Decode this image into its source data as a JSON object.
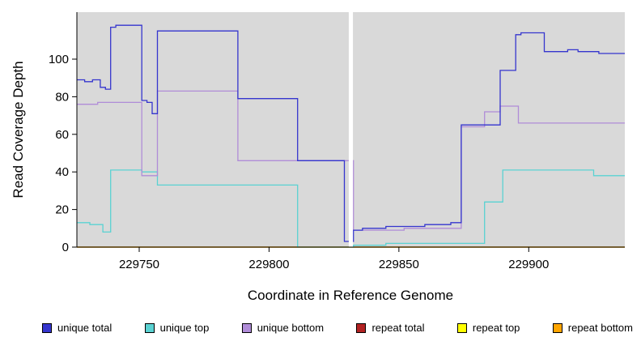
{
  "figure": {
    "background": "#FFFFFF",
    "plot_background": "#D9D9D9",
    "gap_band_color": "#FFFFFF",
    "axis_color": "#000000"
  },
  "chart_data": {
    "type": "line",
    "step": true,
    "title": "",
    "xlabel": "Coordinate in Reference Genome",
    "ylabel": "Read Coverage Depth",
    "xlim": [
      229726,
      229937
    ],
    "ylim": [
      0,
      125
    ],
    "xticks": [
      229750,
      229800,
      229850,
      229900
    ],
    "yticks": [
      0,
      20,
      40,
      60,
      80,
      100
    ],
    "grid": false,
    "legend_position": "bottom",
    "gap_region": [
      229830.7,
      229832.3
    ],
    "draw_order": [
      3,
      4,
      5,
      1,
      2,
      0
    ],
    "series": [
      {
        "name": "unique total",
        "color": "#3535CE",
        "points": [
          [
            229726,
            89
          ],
          [
            229729,
            88
          ],
          [
            229732,
            89
          ],
          [
            229735,
            85
          ],
          [
            229737,
            84
          ],
          [
            229739,
            117
          ],
          [
            229741,
            118
          ],
          [
            229751,
            78
          ],
          [
            229753,
            77
          ],
          [
            229755,
            71
          ],
          [
            229757,
            115
          ],
          [
            229788,
            79
          ],
          [
            229811,
            46
          ],
          [
            229829,
            3
          ],
          [
            229832.5,
            9
          ],
          [
            229836,
            10
          ],
          [
            229845,
            11
          ],
          [
            229860,
            12
          ],
          [
            229870,
            13
          ],
          [
            229874,
            65
          ],
          [
            229889,
            94
          ],
          [
            229895,
            113
          ],
          [
            229897,
            114
          ],
          [
            229906,
            104
          ],
          [
            229915,
            105
          ],
          [
            229919,
            104
          ],
          [
            229927,
            103
          ]
        ]
      },
      {
        "name": "unique top",
        "color": "#5AD2D2",
        "points": [
          [
            229726,
            13
          ],
          [
            229731,
            12
          ],
          [
            229736,
            8
          ],
          [
            229739,
            41
          ],
          [
            229751,
            40
          ],
          [
            229757,
            33
          ],
          [
            229811,
            0
          ],
          [
            229832.5,
            1
          ],
          [
            229845,
            2
          ],
          [
            229883,
            24
          ],
          [
            229890,
            41
          ],
          [
            229925,
            38
          ]
        ]
      },
      {
        "name": "unique bottom",
        "color": "#B08CD8",
        "points": [
          [
            229726,
            76
          ],
          [
            229734,
            77
          ],
          [
            229751,
            38
          ],
          [
            229757,
            83
          ],
          [
            229788,
            46
          ],
          [
            229832.5,
            9
          ],
          [
            229852,
            10
          ],
          [
            229874,
            64
          ],
          [
            229883,
            72
          ],
          [
            229889,
            75
          ],
          [
            229896,
            66
          ]
        ]
      },
      {
        "name": "repeat total",
        "color": "#B22222",
        "points": [
          [
            229726,
            0
          ]
        ]
      },
      {
        "name": "repeat top",
        "color": "#FFFF00",
        "points": [
          [
            229726,
            0
          ]
        ]
      },
      {
        "name": "repeat bottom",
        "color": "#FFA500",
        "points": [
          [
            229726,
            0
          ]
        ]
      }
    ]
  }
}
